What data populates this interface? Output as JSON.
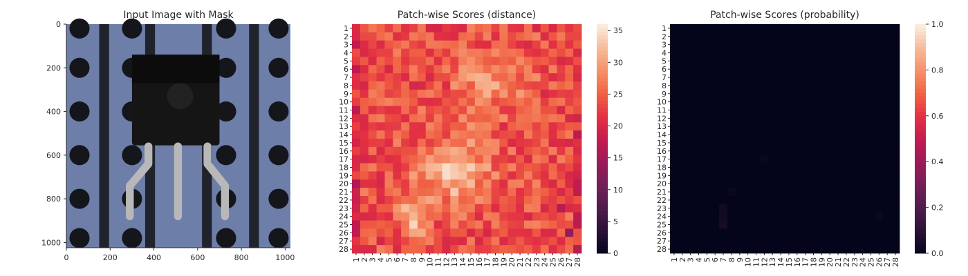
{
  "chart_data": [
    {
      "type": "image",
      "title": "Input Image with Mask",
      "xlim": [
        0,
        1024
      ],
      "ylim": [
        1024,
        0
      ],
      "xticks": [
        "0",
        "200",
        "400",
        "600",
        "800",
        "1000"
      ],
      "yticks": [
        "0",
        "200",
        "400",
        "600",
        "800",
        "1000"
      ],
      "background_color": "#6d7ea8",
      "stripe_color": "#20232b",
      "component_color": "#151515",
      "lead_color": "#b8b8b8"
    },
    {
      "type": "heatmap",
      "title": "Patch-wise Scores (distance)",
      "rows": 28,
      "cols": 28,
      "tick_labels": [
        "1",
        "2",
        "3",
        "4",
        "5",
        "6",
        "7",
        "8",
        "9",
        "10",
        "11",
        "12",
        "13",
        "14",
        "15",
        "16",
        "17",
        "18",
        "19",
        "20",
        "21",
        "22",
        "23",
        "24",
        "25",
        "26",
        "27",
        "28"
      ],
      "colorbar": {
        "min": 0,
        "max": 36,
        "ticks": [
          "0",
          "5",
          "10",
          "15",
          "20",
          "25",
          "30",
          "35"
        ]
      },
      "colormap": "rocket",
      "value_range_estimate": [
        15,
        35
      ]
    },
    {
      "type": "heatmap",
      "title": "Patch-wise Scores (probability)",
      "rows": 28,
      "cols": 28,
      "tick_labels": [
        "1",
        "2",
        "3",
        "4",
        "5",
        "6",
        "7",
        "8",
        "9",
        "10",
        "11",
        "12",
        "13",
        "14",
        "15",
        "16",
        "17",
        "18",
        "19",
        "20",
        "21",
        "22",
        "23",
        "24",
        "25",
        "26",
        "27",
        "28"
      ],
      "colorbar": {
        "min": 0,
        "max": 1,
        "ticks": [
          "0.0",
          "0.2",
          "0.4",
          "0.6",
          "0.8",
          "1.0"
        ]
      },
      "colormap": "rocket",
      "value_range_estimate": [
        0,
        0.05
      ]
    }
  ]
}
